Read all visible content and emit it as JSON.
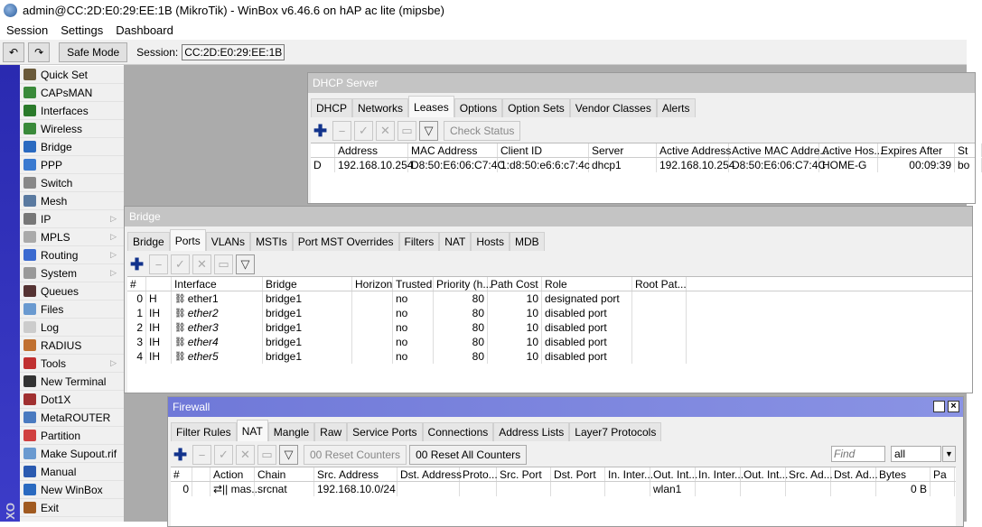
{
  "window": {
    "title": "admin@CC:2D:E0:29:EE:1B (MikroTik) - WinBox v6.46.6 on hAP ac lite (mipsbe)"
  },
  "menu": [
    "Session",
    "Settings",
    "Dashboard"
  ],
  "toolbar": {
    "undo": "↶",
    "redo": "↷",
    "safe_mode": "Safe Mode",
    "session_label": "Session:",
    "session_value": "CC:2D:E0:29:EE:1B"
  },
  "strip_text": "XO",
  "sidebar": [
    {
      "label": "Quick Set",
      "color": "#6a5a3a"
    },
    {
      "label": "CAPsMAN",
      "color": "#3a8a3a"
    },
    {
      "label": "Interfaces",
      "color": "#2a7a2a"
    },
    {
      "label": "Wireless",
      "color": "#3a8a3a"
    },
    {
      "label": "Bridge",
      "color": "#2a6ac0"
    },
    {
      "label": "PPP",
      "color": "#3a7ad0"
    },
    {
      "label": "Switch",
      "color": "#888888"
    },
    {
      "label": "Mesh",
      "color": "#5a7aa0"
    },
    {
      "label": "IP",
      "color": "#777777",
      "sub": true
    },
    {
      "label": "MPLS",
      "color": "#aaaaaa",
      "sub": true
    },
    {
      "label": "Routing",
      "color": "#3a6ad0",
      "sub": true
    },
    {
      "label": "System",
      "color": "#999999",
      "sub": true
    },
    {
      "label": "Queues",
      "color": "#553333"
    },
    {
      "label": "Files",
      "color": "#6a9ad0"
    },
    {
      "label": "Log",
      "color": "#cccccc"
    },
    {
      "label": "RADIUS",
      "color": "#c07030"
    },
    {
      "label": "Tools",
      "color": "#c03030",
      "sub": true
    },
    {
      "label": "New Terminal",
      "color": "#333333"
    },
    {
      "label": "Dot1X",
      "color": "#a03030"
    },
    {
      "label": "MetaROUTER",
      "color": "#4a7ac0"
    },
    {
      "label": "Partition",
      "color": "#d04040"
    },
    {
      "label": "Make Supout.rif",
      "color": "#6a9ad0"
    },
    {
      "label": "Manual",
      "color": "#2a5ab0"
    },
    {
      "label": "New WinBox",
      "color": "#2a6ac0"
    },
    {
      "label": "Exit",
      "color": "#a05a20"
    }
  ],
  "dhcp": {
    "title": "DHCP Server",
    "tabs": [
      "DHCP",
      "Networks",
      "Leases",
      "Options",
      "Option Sets",
      "Vendor Classes",
      "Alerts"
    ],
    "selected_tab": 2,
    "check_status": "Check Status",
    "columns": [
      "",
      "Address",
      "MAC Address",
      "Client ID",
      "Server",
      "Active Address",
      "Active MAC Addre...",
      "Active Hos...",
      "Expires After",
      "St"
    ],
    "rows": [
      [
        "D",
        "192.168.10.254",
        "D8:50:E6:06:C7:4C",
        "1:d8:50:e6:6:c7:4c",
        "dhcp1",
        "192.168.10.254",
        "D8:50:E6:06:C7:4C",
        "HOME-G",
        "00:09:39",
        "bo"
      ]
    ]
  },
  "bridge": {
    "title": "Bridge",
    "tabs": [
      "Bridge",
      "Ports",
      "VLANs",
      "MSTIs",
      "Port MST Overrides",
      "Filters",
      "NAT",
      "Hosts",
      "MDB"
    ],
    "selected_tab": 1,
    "columns": [
      "#",
      "",
      "Interface",
      "Bridge",
      "Horizon",
      "Trusted",
      "Priority (h...",
      "Path Cost",
      "Role",
      "Root Pat..."
    ],
    "rows": [
      [
        "0",
        "H",
        "ether1",
        "bridge1",
        "",
        "no",
        "80",
        "10",
        "designated port",
        ""
      ],
      [
        "1",
        "IH",
        "ether2",
        "bridge1",
        "",
        "no",
        "80",
        "10",
        "disabled port",
        ""
      ],
      [
        "2",
        "IH",
        "ether3",
        "bridge1",
        "",
        "no",
        "80",
        "10",
        "disabled port",
        ""
      ],
      [
        "3",
        "IH",
        "ether4",
        "bridge1",
        "",
        "no",
        "80",
        "10",
        "disabled port",
        ""
      ],
      [
        "4",
        "IH",
        "ether5",
        "bridge1",
        "",
        "no",
        "80",
        "10",
        "disabled port",
        ""
      ]
    ]
  },
  "firewall": {
    "title": "Firewall",
    "tabs": [
      "Filter Rules",
      "NAT",
      "Mangle",
      "Raw",
      "Service Ports",
      "Connections",
      "Address Lists",
      "Layer7 Protocols"
    ],
    "selected_tab": 1,
    "reset_counters": "00 Reset Counters",
    "reset_all": "00 Reset All Counters",
    "find_placeholder": "Find",
    "filter_value": "all",
    "columns": [
      "#",
      "",
      "Action",
      "Chain",
      "Src. Address",
      "Dst. Address",
      "Proto...",
      "Src. Port",
      "Dst. Port",
      "In. Inter...",
      "Out. Int...",
      "In. Inter...",
      "Out. Int...",
      "Src. Ad...",
      "Dst. Ad...",
      "Bytes",
      "Pa"
    ],
    "rows": [
      [
        "0",
        "",
        "⇄|| mas...",
        "srcnat",
        "192.168.10.0/24",
        "",
        "",
        "",
        "",
        "",
        "wlan1",
        "",
        "",
        "",
        "",
        "0 B",
        ""
      ]
    ]
  }
}
